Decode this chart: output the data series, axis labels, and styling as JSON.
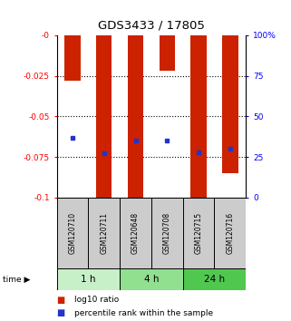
{
  "title": "GDS3433 / 17805",
  "samples": [
    "GSM120710",
    "GSM120711",
    "GSM120648",
    "GSM120708",
    "GSM120715",
    "GSM120716"
  ],
  "log10_ratios": [
    -0.028,
    -0.1,
    -0.1,
    -0.022,
    -0.1,
    -0.085
  ],
  "percentile_ranks": [
    37,
    27,
    35,
    35,
    28,
    30
  ],
  "time_groups": [
    {
      "label": "1 h",
      "indices": [
        0,
        1
      ],
      "color": "#c8f0c8"
    },
    {
      "label": "4 h",
      "indices": [
        2,
        3
      ],
      "color": "#90e090"
    },
    {
      "label": "24 h",
      "indices": [
        4,
        5
      ],
      "color": "#50c850"
    }
  ],
  "ylim_left": [
    -0.1,
    0
  ],
  "ylim_right": [
    0,
    100
  ],
  "yticks_left": [
    0,
    -0.025,
    -0.05,
    -0.075,
    -0.1
  ],
  "ytick_labels_left": [
    "-0",
    "-0.025",
    "-0.05",
    "-0.075",
    "-0.1"
  ],
  "yticks_right": [
    0,
    25,
    50,
    75,
    100
  ],
  "ytick_labels_right": [
    "0",
    "25",
    "50",
    "75",
    "100%"
  ],
  "bar_color": "#cc2200",
  "dot_color": "#2233cc",
  "bar_width": 0.5,
  "background_color": "#ffffff",
  "sample_box_color": "#cccccc",
  "legend_items": [
    {
      "color": "#cc2200",
      "label": "log10 ratio"
    },
    {
      "color": "#2233cc",
      "label": "percentile rank within the sample"
    }
  ],
  "grid_yticks": [
    -0.025,
    -0.05,
    -0.075
  ]
}
